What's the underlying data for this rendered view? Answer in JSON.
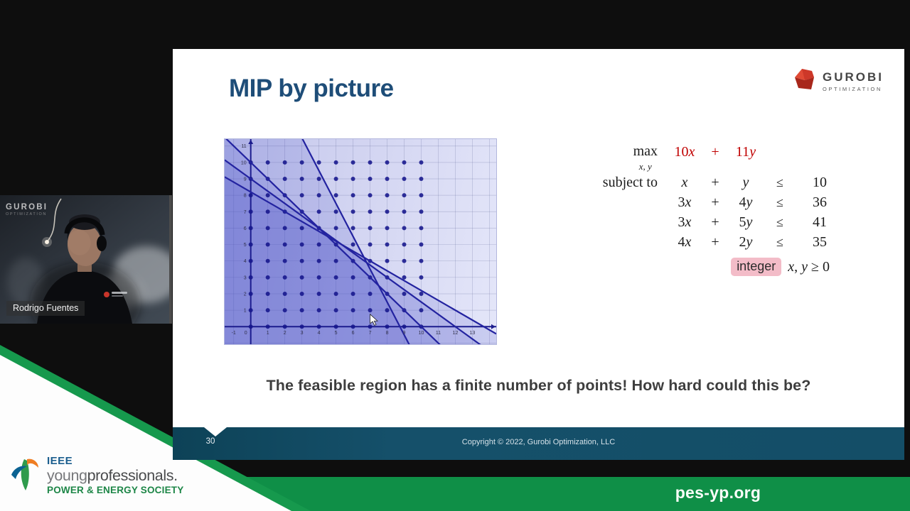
{
  "slide": {
    "title": "MIP by picture",
    "headline": "The feasible region has a finite number of points! How hard could this be?",
    "page_number": "30",
    "copyright": "Copyright © 2022, Gurobi Optimization, LLC",
    "logo": {
      "name": "GUROBI",
      "subtitle": "OPTIMIZATION"
    }
  },
  "problem": {
    "max_label": "max",
    "max_subscript": "x, y",
    "objective": {
      "term1": "10x",
      "plus": "+",
      "term2": "11y"
    },
    "subject_label": "subject to",
    "constraints": [
      {
        "term1": "x",
        "plus": "+",
        "term2": "y",
        "rel": "≤",
        "rhs": "10"
      },
      {
        "term1": "3x",
        "plus": "+",
        "term2": "4y",
        "rel": "≤",
        "rhs": "36"
      },
      {
        "term1": "3x",
        "plus": "+",
        "term2": "5y",
        "rel": "≤",
        "rhs": "41"
      },
      {
        "term1": "4x",
        "plus": "+",
        "term2": "2y",
        "rel": "≤",
        "rhs": "35"
      }
    ],
    "integer_label": "integer",
    "nonneg": "x, y ≥ 0",
    "colors": {
      "objective_red": "#c00000",
      "integer_pill_bg": "#f3bcc8"
    }
  },
  "chart_data": {
    "type": "scatter",
    "title": "",
    "xlabel": "",
    "ylabel": "",
    "x_range": [
      -1.53,
      14.4
    ],
    "y_range": [
      -1.07,
      11.42
    ],
    "x_tick_labels": [
      -1,
      0,
      1,
      2,
      3,
      4,
      5,
      6,
      7,
      8,
      9,
      10,
      11,
      12,
      13
    ],
    "y_tick_labels": [
      1,
      2,
      3,
      4,
      5,
      6,
      7,
      8,
      9,
      10,
      11
    ],
    "lattice_points": {
      "x_min": 0,
      "x_max": 10,
      "y_min": 0,
      "y_max": 10,
      "note": "integer grid dots at every (x,y)"
    },
    "constraint_lines": [
      {
        "equation": "x + y = 10",
        "a": 1,
        "b": 1,
        "c": 10
      },
      {
        "equation": "3x + 4y = 36",
        "a": 3,
        "b": 4,
        "c": 36
      },
      {
        "equation": "3x + 5y = 41",
        "a": 3,
        "b": 5,
        "c": 41
      },
      {
        "equation": "4x + 2y = 35",
        "a": 4,
        "b": 2,
        "c": 35
      }
    ],
    "feasible_region": "intersection of the four half-planes (darkest shading, lower-left)",
    "cursor_graph_coords": [
      7.0,
      0.45
    ],
    "grid": true,
    "legend": false,
    "colors": {
      "line": "#2323a0",
      "axis": "#1c1c8e",
      "dot": "#16168c",
      "halfplane_fill": "rgba(68,76,198,0.16)",
      "tick_text": "#30304a"
    }
  },
  "webcam": {
    "watermark": "GUROBI",
    "watermark_sub": "OPTIMIZATION",
    "name_label": "Rodrigo Fuentes"
  },
  "branding": {
    "ieee": "IEEE",
    "young": "young",
    "professionals": "professionals.",
    "society": "POWER & ENERGY SOCIETY",
    "url": "pes-yp.org",
    "colors": {
      "green_bar": "#0f8f47",
      "ieee_blue": "#1b5e8e",
      "society_green": "#1d8647",
      "footer_teal": "#15506a"
    }
  }
}
